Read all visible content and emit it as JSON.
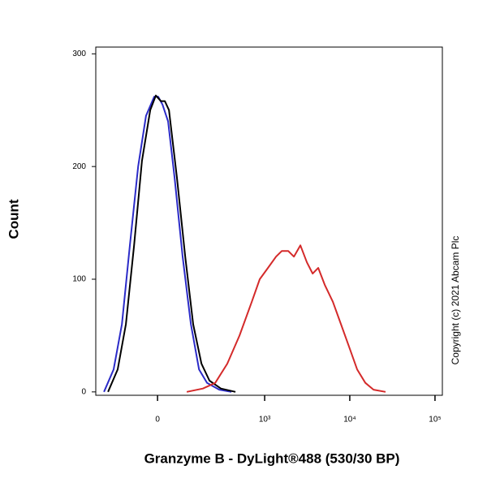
{
  "chart_data": {
    "type": "line",
    "xlabel": "Granzyme B - DyLight®488 (530/30 BP)",
    "ylabel": "Count",
    "annotation": "Copyright (c) 2021 Abcam Plc",
    "xscale": {
      "type": "asinh",
      "width": 111
    },
    "xlim": [
      -284,
      122000
    ],
    "xticks": [
      0,
      {
        "value": 1000,
        "label": "10³"
      },
      {
        "value": 10000,
        "label": "10⁴"
      },
      {
        "value": 100000,
        "label": "10⁵"
      }
    ],
    "ylim": [
      -3,
      306
    ],
    "yticks": [
      0,
      100,
      200,
      300
    ],
    "series": [
      {
        "color": "#2b2bc8",
        "x": [
          -223,
          -165,
          -124,
          -91,
          -61,
          -35,
          -10,
          2,
          15,
          32,
          53,
          81,
          114,
          152,
          197,
          284,
          401
        ],
        "values": [
          0,
          20,
          60,
          130,
          200,
          245,
          262,
          262,
          255,
          240,
          190,
          120,
          60,
          20,
          8,
          2,
          0
        ]
      },
      {
        "color": "#000000",
        "x": [
          -197,
          -144,
          -107,
          -75,
          -48,
          -22,
          -5,
          10,
          22,
          35,
          61,
          91,
          124,
          165,
          212,
          297,
          449
        ],
        "values": [
          0,
          20,
          60,
          130,
          205,
          250,
          263,
          258,
          258,
          250,
          190,
          120,
          60,
          25,
          10,
          3,
          0
        ]
      },
      {
        "color": "#d42a2a",
        "x": [
          97,
          173,
          252,
          357,
          502,
          703,
          874,
          1092,
          1362,
          1587,
          1898,
          2209,
          2631,
          3141,
          3663,
          4262,
          5084,
          6327,
          7881,
          9812,
          12210,
          15207,
          18981,
          26307
        ],
        "values": [
          0,
          3,
          8,
          25,
          50,
          80,
          100,
          110,
          120,
          125,
          125,
          120,
          130,
          115,
          105,
          110,
          95,
          80,
          60,
          40,
          20,
          8,
          2,
          0
        ]
      }
    ]
  }
}
